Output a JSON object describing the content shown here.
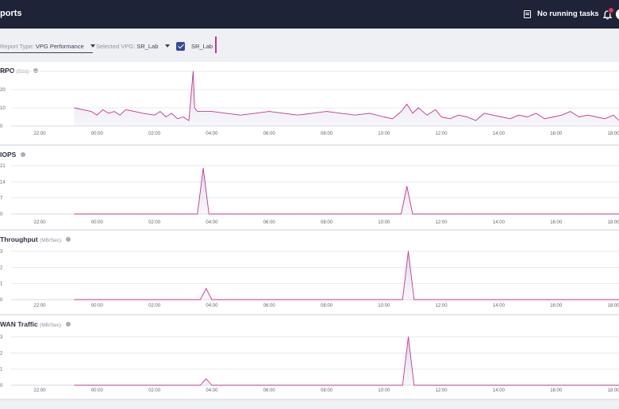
{
  "header": {
    "title": "ports",
    "tasks_label": "No running tasks"
  },
  "filters": {
    "report_type_label": "Report Type:",
    "report_type_value": "VPG Performance",
    "vpg_label": "Selected VPG:",
    "vpg_value": "SR_Lab",
    "vpg_checkbox_label": "SR_Lab",
    "vpg_checked": true,
    "series_color": "#c8338e"
  },
  "x_ticks": [
    "22:00",
    "00:00",
    "02:00",
    "04:00",
    "06:00",
    "08:00",
    "10:00",
    "12:00",
    "14:00",
    "16:00",
    "18:00"
  ],
  "charts": [
    {
      "title": "RPO",
      "unit": "(Sec)",
      "y_ticks": [
        "30",
        "20",
        "10",
        "0"
      ],
      "chart_data": {
        "type": "area",
        "ylim": [
          0,
          30
        ],
        "series": [
          {
            "x": [
              -0.8,
              -0.5,
              -0.2,
              0.0,
              0.2,
              0.4,
              0.6,
              0.8,
              1.0,
              1.3,
              1.6,
              2.0,
              2.2,
              2.4,
              2.6,
              2.8,
              3.0,
              3.2,
              3.35,
              3.4,
              3.5,
              3.7,
              4.0,
              4.5,
              5.0,
              5.5,
              6.0,
              6.5,
              7.0,
              7.5,
              8.0,
              8.5,
              9.0,
              9.5,
              10.0,
              10.3,
              10.6,
              10.8,
              11.0,
              11.2,
              11.5,
              11.8,
              12.0,
              12.3,
              12.6,
              12.9,
              13.2,
              13.5,
              13.8,
              14.1,
              14.4,
              14.7,
              15.0,
              15.3,
              15.6,
              15.9,
              16.2,
              16.5,
              16.8,
              17.1,
              17.4,
              17.7,
              18.0,
              18.3
            ],
            "y": [
              10,
              9,
              8,
              6,
              9,
              7,
              8,
              6,
              9,
              8,
              7,
              6,
              8,
              5,
              7,
              4,
              5,
              3,
              30,
              10,
              8,
              8,
              8,
              7,
              6,
              7,
              8,
              7,
              6,
              7,
              8,
              7,
              6,
              7,
              5,
              4,
              8,
              12,
              7,
              10,
              6,
              9,
              5,
              4,
              6,
              5,
              3,
              7,
              6,
              5,
              4,
              6,
              5,
              7,
              4,
              5,
              6,
              8,
              5,
              6,
              5,
              4,
              6,
              3
            ]
          }
        ]
      }
    },
    {
      "title": "IOPS",
      "unit": "",
      "y_ticks": [
        "21",
        "14",
        "7",
        "0"
      ],
      "chart_data": {
        "type": "area",
        "ylim": [
          0,
          21
        ],
        "series": [
          {
            "x": [
              -0.8,
              3.5,
              3.7,
              3.9,
              10.6,
              10.8,
              11.0,
              18.3
            ],
            "y": [
              0,
              0,
              20,
              0,
              0,
              12,
              0,
              0
            ]
          }
        ]
      }
    },
    {
      "title": "Throughput",
      "unit": "(MB/Sec)",
      "y_ticks": [
        "3",
        "2",
        "1",
        "0"
      ],
      "chart_data": {
        "type": "area",
        "ylim": [
          0,
          3
        ],
        "series": [
          {
            "x": [
              -0.8,
              3.6,
              3.8,
              4.0,
              10.65,
              10.85,
              11.05,
              18.3
            ],
            "y": [
              0,
              0,
              0.7,
              0,
              0,
              3,
              0,
              0
            ]
          }
        ]
      }
    },
    {
      "title": "WAN Traffic",
      "unit": "(MB/Sec)",
      "y_ticks": [
        "3",
        "2",
        "1",
        "0"
      ],
      "chart_data": {
        "type": "area",
        "ylim": [
          0,
          3
        ],
        "series": [
          {
            "x": [
              -0.8,
              3.6,
              3.8,
              4.0,
              10.65,
              10.85,
              11.05,
              18.3
            ],
            "y": [
              0,
              0,
              0.4,
              0,
              0,
              3,
              0,
              0
            ]
          }
        ]
      }
    }
  ]
}
